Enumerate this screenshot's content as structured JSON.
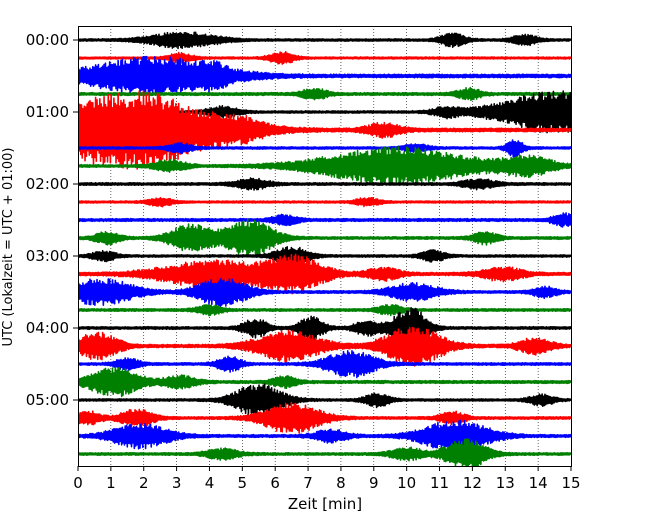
{
  "chart_data": {
    "type": "line",
    "title": "",
    "xlabel": "Zeit  [min]",
    "ylabel": "UTC (Lokalzeit = UTC + 01:00)",
    "xlim": [
      0,
      15
    ],
    "x_ticks": [
      "0",
      "1",
      "2",
      "3",
      "4",
      "5",
      "6",
      "7",
      "8",
      "9",
      "10",
      "11",
      "12",
      "13",
      "14",
      "15"
    ],
    "y_ticks": [
      "00:00",
      "01:00",
      "02:00",
      "03:00",
      "04:00",
      "05:00"
    ],
    "trace_interval_minutes": 15,
    "grid": "vertical dotted",
    "trace_colors": [
      "#000000",
      "#ff0000",
      "#0000ff",
      "#008000"
    ],
    "traces": [
      {
        "start": "00:00",
        "noise": 0.18,
        "bursts": [
          [
            3.2,
            1.2,
            0.8
          ],
          [
            11.4,
            1.0,
            0.3
          ],
          [
            13.6,
            0.8,
            0.3
          ]
        ]
      },
      {
        "start": "00:15",
        "noise": 0.16,
        "bursts": [
          [
            6.2,
            0.9,
            0.3
          ],
          [
            3.1,
            0.7,
            0.3
          ]
        ]
      },
      {
        "start": "00:30",
        "noise": 0.28,
        "bursts": [
          [
            2.3,
            2.8,
            1.6
          ],
          [
            4.1,
            0.8,
            0.3
          ]
        ]
      },
      {
        "start": "00:45",
        "noise": 0.22,
        "bursts": [
          [
            7.2,
            0.8,
            0.3
          ],
          [
            11.9,
            0.8,
            0.3
          ]
        ]
      },
      {
        "start": "01:00",
        "noise": 0.18,
        "bursts": [
          [
            14.6,
            3.2,
            1.4
          ],
          [
            4.4,
            0.8,
            0.4
          ],
          [
            11.2,
            0.7,
            0.3
          ]
        ]
      },
      {
        "start": "01:15",
        "noise": 0.28,
        "bursts": [
          [
            0.9,
            5.0,
            2.2
          ],
          [
            2.4,
            1.6,
            1.0
          ],
          [
            4.9,
            1.2,
            0.6
          ],
          [
            9.3,
            1.0,
            0.4
          ]
        ]
      },
      {
        "start": "01:30",
        "noise": 0.18,
        "bursts": [
          [
            13.3,
            1.3,
            0.2
          ],
          [
            3.1,
            0.7,
            0.3
          ],
          [
            10.3,
            0.6,
            0.3
          ]
        ]
      },
      {
        "start": "01:45",
        "noise": 0.2,
        "bursts": [
          [
            9.7,
            2.8,
            1.8
          ],
          [
            13.7,
            1.4,
            0.6
          ],
          [
            2.8,
            0.8,
            0.4
          ]
        ]
      },
      {
        "start": "02:00",
        "noise": 0.2,
        "bursts": [
          [
            5.3,
            0.8,
            0.4
          ],
          [
            12.2,
            0.7,
            0.4
          ]
        ]
      },
      {
        "start": "02:15",
        "noise": 0.16,
        "bursts": [
          [
            2.5,
            0.6,
            0.3
          ],
          [
            8.8,
            0.6,
            0.3
          ]
        ]
      },
      {
        "start": "02:30",
        "noise": 0.22,
        "bursts": [
          [
            14.8,
            0.9,
            0.3
          ],
          [
            6.3,
            0.7,
            0.3
          ]
        ]
      },
      {
        "start": "02:45",
        "noise": 0.2,
        "bursts": [
          [
            5.2,
            2.8,
            0.6
          ],
          [
            3.4,
            2.0,
            0.5
          ],
          [
            12.4,
            0.9,
            0.3
          ],
          [
            0.9,
            0.9,
            0.3
          ]
        ]
      },
      {
        "start": "03:00",
        "noise": 0.18,
        "bursts": [
          [
            6.5,
            1.4,
            0.4
          ],
          [
            0.8,
            0.7,
            0.3
          ],
          [
            10.8,
            0.8,
            0.3
          ]
        ]
      },
      {
        "start": "03:15",
        "noise": 0.24,
        "bursts": [
          [
            4.1,
            2.0,
            1.3
          ],
          [
            6.6,
            2.6,
            0.7
          ],
          [
            9.3,
            0.9,
            0.4
          ],
          [
            12.9,
            1.0,
            0.5
          ]
        ]
      },
      {
        "start": "03:30",
        "noise": 0.2,
        "bursts": [
          [
            0.7,
            2.0,
            0.8
          ],
          [
            4.4,
            2.2,
            0.6
          ],
          [
            10.2,
            1.3,
            0.6
          ],
          [
            14.2,
            0.8,
            0.3
          ]
        ]
      },
      {
        "start": "03:45",
        "noise": 0.2,
        "bursts": [
          [
            4.0,
            0.7,
            0.3
          ],
          [
            9.5,
            0.7,
            0.3
          ]
        ]
      },
      {
        "start": "04:00",
        "noise": 0.2,
        "bursts": [
          [
            10.1,
            3.2,
            0.4
          ],
          [
            7.1,
            1.8,
            0.3
          ],
          [
            5.4,
            1.4,
            0.3
          ],
          [
            8.8,
            1.2,
            0.3
          ]
        ]
      },
      {
        "start": "04:15",
        "noise": 0.24,
        "bursts": [
          [
            0.6,
            2.0,
            0.5
          ],
          [
            6.4,
            2.2,
            0.8
          ],
          [
            10.2,
            3.0,
            0.7
          ],
          [
            13.9,
            1.2,
            0.4
          ]
        ]
      },
      {
        "start": "04:30",
        "noise": 0.2,
        "bursts": [
          [
            8.3,
            2.0,
            0.6
          ],
          [
            4.6,
            1.1,
            0.3
          ],
          [
            1.5,
            0.8,
            0.3
          ]
        ]
      },
      {
        "start": "04:45",
        "noise": 0.22,
        "bursts": [
          [
            1.1,
            2.2,
            0.6
          ],
          [
            3.1,
            0.9,
            0.4
          ],
          [
            6.3,
            0.8,
            0.3
          ]
        ]
      },
      {
        "start": "05:00",
        "noise": 0.18,
        "bursts": [
          [
            5.5,
            2.4,
            0.6
          ],
          [
            9.1,
            1.0,
            0.3
          ],
          [
            14.1,
            0.8,
            0.3
          ]
        ]
      },
      {
        "start": "05:15",
        "noise": 0.2,
        "bursts": [
          [
            6.5,
            2.3,
            0.7
          ],
          [
            1.8,
            1.3,
            0.4
          ],
          [
            0.3,
            1.0,
            0.3
          ],
          [
            11.4,
            0.9,
            0.3
          ]
        ]
      },
      {
        "start": "05:30",
        "noise": 0.22,
        "bursts": [
          [
            1.9,
            1.8,
            0.7
          ],
          [
            11.5,
            2.4,
            0.8
          ],
          [
            7.7,
            0.9,
            0.4
          ]
        ]
      },
      {
        "start": "05:45",
        "noise": 0.2,
        "bursts": [
          [
            11.8,
            2.2,
            0.5
          ],
          [
            10.0,
            0.9,
            0.4
          ],
          [
            4.4,
            0.8,
            0.4
          ]
        ]
      }
    ]
  }
}
